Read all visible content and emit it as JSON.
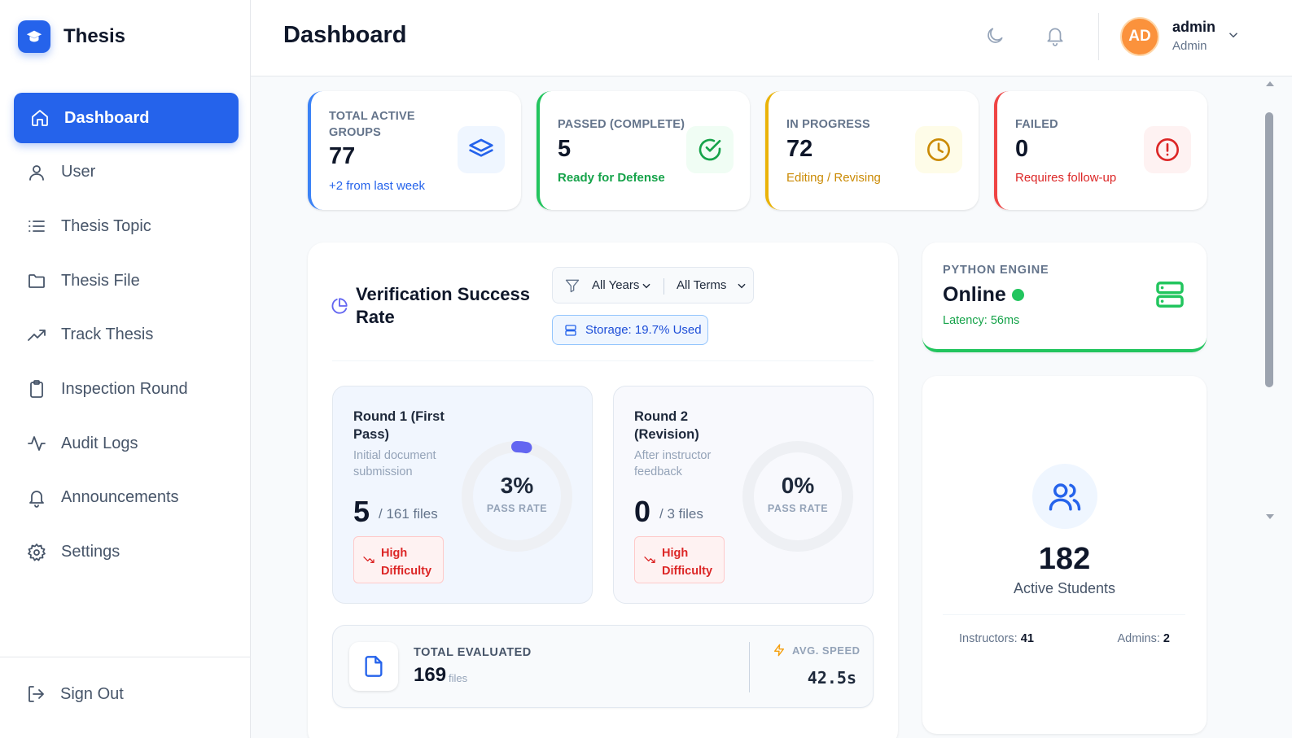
{
  "app": {
    "name": "Thesis",
    "logo_icon": "graduation-cap-icon"
  },
  "sidebar": {
    "items": [
      {
        "label": "Dashboard",
        "icon": "home-icon",
        "active": true
      },
      {
        "label": "User",
        "icon": "user-icon"
      },
      {
        "label": "Thesis Topic",
        "icon": "list-icon"
      },
      {
        "label": "Thesis File",
        "icon": "folder-icon"
      },
      {
        "label": "Track Thesis",
        "icon": "trending-up-icon"
      },
      {
        "label": "Inspection Round",
        "icon": "clipboard-icon"
      },
      {
        "label": "Audit Logs",
        "icon": "activity-icon"
      },
      {
        "label": "Announcements",
        "icon": "bell-icon"
      },
      {
        "label": "Settings",
        "icon": "gear-icon"
      }
    ],
    "sign_out": "Sign Out"
  },
  "header": {
    "title": "Dashboard",
    "user": {
      "initials": "AD",
      "name": "admin",
      "role": "Admin"
    }
  },
  "stats": [
    {
      "label": "TOTAL ACTIVE GROUPS",
      "value": "77",
      "sub": "+2 from last week",
      "color": "#3b82f6",
      "icon": "layers-icon"
    },
    {
      "label": "PASSED (COMPLETE)",
      "value": "5",
      "sub": "Ready for Defense",
      "color": "#22c55e",
      "icon": "check-circle-icon"
    },
    {
      "label": "IN PROGRESS",
      "value": "72",
      "sub": "Editing / Revising",
      "color": "#eab308",
      "icon": "clock-icon"
    },
    {
      "label": "FAILED",
      "value": "0",
      "sub": "Requires follow-up",
      "color": "#ef4444",
      "icon": "alert-circle-icon"
    }
  ],
  "verification": {
    "title": "Verification Success Rate",
    "filters": {
      "years": "All Years",
      "terms": "All Terms"
    },
    "storage": "Storage: 19.7% Used",
    "rounds": [
      {
        "title": "Round 1 (First Pass)",
        "desc": "Initial document submission",
        "count": "5",
        "files": "/ 161 files",
        "rate_text": "3%",
        "rate": 0.03,
        "rate_label": "PASS RATE",
        "difficulty": "High Difficulty",
        "ring_color": "#6366f1"
      },
      {
        "title": "Round 2 (Revision)",
        "desc": "After instructor feedback",
        "count": "0",
        "files": "/ 3 files",
        "rate_text": "0%",
        "rate": 0,
        "rate_label": "PASS RATE",
        "difficulty": "High Difficulty",
        "ring_color": "#6366f1"
      }
    ],
    "total": {
      "label": "TOTAL EVALUATED",
      "value": "169",
      "unit": "files"
    },
    "speed": {
      "label": "AVG. SPEED",
      "value": "42.5s"
    }
  },
  "engine": {
    "label": "PYTHON ENGINE",
    "status": "Online",
    "latency": "Latency: 56ms"
  },
  "students": {
    "count": "182",
    "label": "Active Students",
    "instructors_label": "Instructors:",
    "instructors": "41",
    "admins_label": "Admins:",
    "admins": "2"
  }
}
